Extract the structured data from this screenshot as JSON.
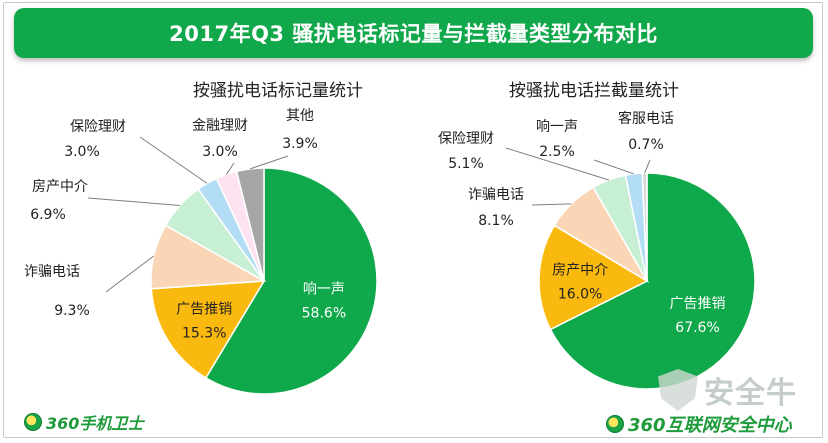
{
  "title": "2017年Q3  骚扰电话标记量与拦截量类型分布对比",
  "footer": {
    "left_logo_text": "360手机卫士",
    "right_logo_text": "360互联网安全中心",
    "watermark_text": "安全牛"
  },
  "chart_data": [
    {
      "type": "pie",
      "title": "按骚扰电话标记量统计",
      "slices": [
        {
          "label": "响一声",
          "value": 58.6,
          "value_text": "58.6%",
          "color": "#0fa84a"
        },
        {
          "label": "广告推销",
          "value": 15.3,
          "value_text": "15.3%",
          "color": "#f9b90e"
        },
        {
          "label": "诈骗电话",
          "value": 9.3,
          "value_text": "9.3%",
          "color": "#fbd6b6"
        },
        {
          "label": "房产中介",
          "value": 6.9,
          "value_text": "6.9%",
          "color": "#c6efd4"
        },
        {
          "label": "保险理财",
          "value": 3.0,
          "value_text": "3.0%",
          "color": "#b3dcf5"
        },
        {
          "label": "金融理财",
          "value": 3.0,
          "value_text": "3.0%",
          "color": "#fde2f2"
        },
        {
          "label": "其他",
          "value": 3.9,
          "value_text": "3.9%",
          "color": "#a6a6a6"
        }
      ]
    },
    {
      "type": "pie",
      "title": "按骚扰电话拦截量统计",
      "slices": [
        {
          "label": "广告推销",
          "value": 67.6,
          "value_text": "67.6%",
          "color": "#0fa84a"
        },
        {
          "label": "房产中介",
          "value": 16.0,
          "value_text": "16.0%",
          "color": "#f9b90e"
        },
        {
          "label": "诈骗电话",
          "value": 8.1,
          "value_text": "8.1%",
          "color": "#fbd6b6"
        },
        {
          "label": "保险理财",
          "value": 5.1,
          "value_text": "5.1%",
          "color": "#c6efd4"
        },
        {
          "label": "响一声",
          "value": 2.5,
          "value_text": "2.5%",
          "color": "#b3dcf5"
        },
        {
          "label": "客服电话",
          "value": 0.7,
          "value_text": "0.7%",
          "color": "#d8d8d8"
        }
      ]
    }
  ]
}
